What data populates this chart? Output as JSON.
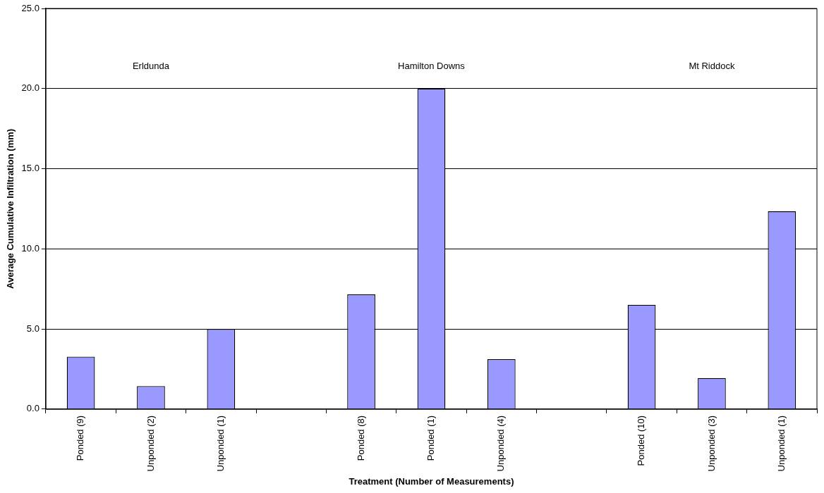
{
  "chart_data": {
    "type": "bar",
    "xlabel": "Treatment (Number of Measurements)",
    "ylabel": "Average Cumulative Infiltration (mm)",
    "categories": [
      "Ponded (9)",
      "Unponded (2)",
      "Unponded (1)",
      null,
      "Ponded (8)",
      "Ponded (1)",
      "Unponded (4)",
      null,
      "Ponded (10)",
      "Unponded (3)",
      "Unponded (1)"
    ],
    "values": [
      3.27,
      1.44,
      5.0,
      null,
      7.16,
      20.0,
      3.12,
      null,
      6.51,
      1.94,
      12.34
    ],
    "color": "#9999ff",
    "ylim": [
      0,
      25
    ],
    "yticks": [
      {
        "value": 0,
        "label": "0.0"
      },
      {
        "value": 5,
        "label": "5.0"
      },
      {
        "value": 10,
        "label": "10.0"
      },
      {
        "value": 15,
        "label": "15.0"
      },
      {
        "value": 20,
        "label": "20.0"
      },
      {
        "value": 25,
        "label": "25.0"
      }
    ],
    "grid": "y",
    "legend": false,
    "annotations": [
      "Erldunda",
      "Hamilton Downs",
      "Mt Riddock"
    ]
  }
}
